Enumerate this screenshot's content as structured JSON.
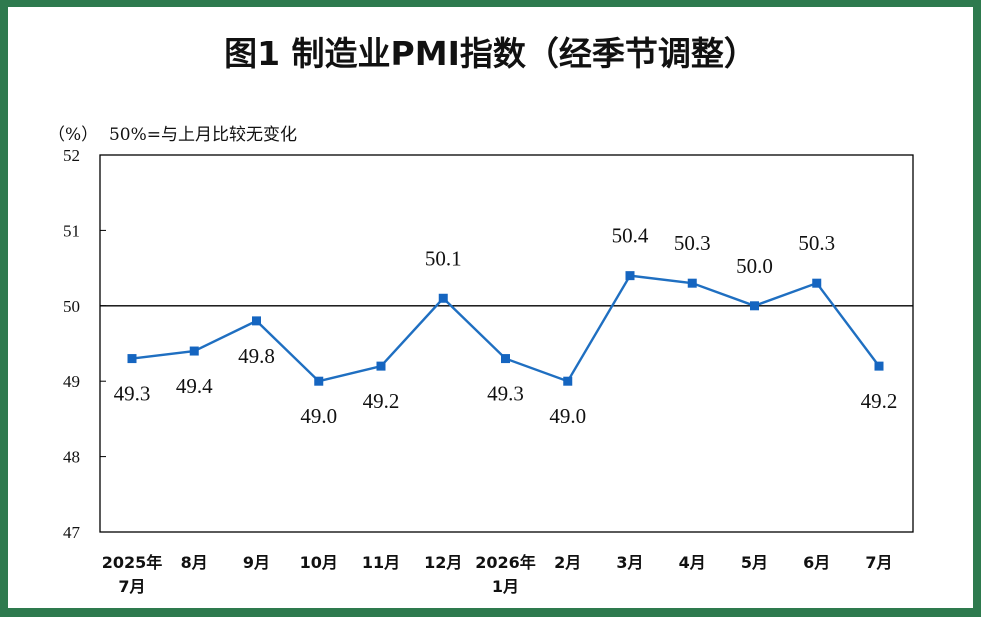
{
  "title": "图1 制造业PMI指数（经季节调整）",
  "unit_label": "（%）",
  "note": "50%=与上月比较无变化",
  "colors": {
    "line": "#1f6fc1",
    "marker": "#1565c0",
    "reference": "#000000",
    "frame_border": "#2e7a4e"
  },
  "chart_data": {
    "type": "line",
    "categories": [
      [
        "2025年",
        "7月"
      ],
      [
        "8月"
      ],
      [
        "9月"
      ],
      [
        "10月"
      ],
      [
        "11月"
      ],
      [
        "12月"
      ],
      [
        "2026年",
        "1月"
      ],
      [
        "2月"
      ],
      [
        "3月"
      ],
      [
        "4月"
      ],
      [
        "5月"
      ],
      [
        "6月"
      ],
      [
        "7月"
      ]
    ],
    "series": [
      {
        "values": [
          49.3,
          49.4,
          49.8,
          49.0,
          49.2,
          50.1,
          49.3,
          49.0,
          50.4,
          50.3,
          50.0,
          50.3,
          49.2
        ],
        "labels": [
          "49.3",
          "49.4",
          "49.8",
          "49.0",
          "49.2",
          "50.1",
          "49.3",
          "49.0",
          "50.4",
          "50.3",
          "50.0",
          "50.3",
          "49.2"
        ],
        "label_position": [
          "below",
          "below",
          "below",
          "below",
          "below",
          "above",
          "below",
          "below",
          "above",
          "above",
          "above",
          "above",
          "below"
        ]
      }
    ],
    "ylim": [
      47,
      52
    ],
    "yticks": [
      47,
      48,
      49,
      50,
      51,
      52
    ],
    "reference_line": 50,
    "grid": false,
    "legend": "none"
  }
}
